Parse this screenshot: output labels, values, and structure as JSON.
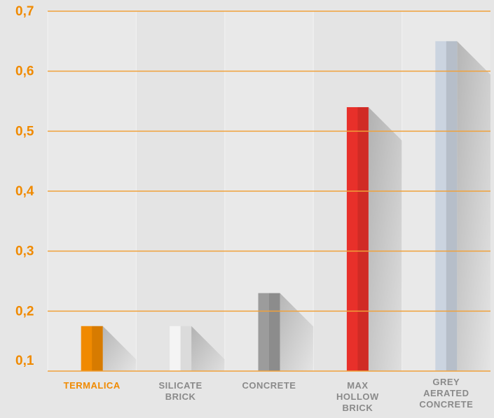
{
  "chart_data": {
    "type": "bar",
    "categories": [
      "TERMALICA",
      "SILICATE BRICK",
      "CONCRETE",
      "MAX HOLLOW BRICK",
      "GREY AERATED CONCRETE"
    ],
    "values": [
      0.175,
      0.175,
      0.23,
      0.54,
      0.65
    ],
    "colors": [
      "#f08a00",
      "#f4f4f4",
      "#9c9c9c",
      "#e8302a",
      "#cbd4e0"
    ],
    "highlight_color": "#f08a00",
    "ylim": [
      0.1,
      0.7
    ],
    "yticks": [
      {
        "value": 0.1,
        "label": "0,1"
      },
      {
        "value": 0.2,
        "label": "0,2"
      },
      {
        "value": 0.3,
        "label": "0,3"
      },
      {
        "value": 0.4,
        "label": "0,4"
      },
      {
        "value": 0.5,
        "label": "0,5"
      },
      {
        "value": 0.6,
        "label": "0,6"
      },
      {
        "value": 0.7,
        "label": "0,7"
      }
    ],
    "grid": true
  }
}
